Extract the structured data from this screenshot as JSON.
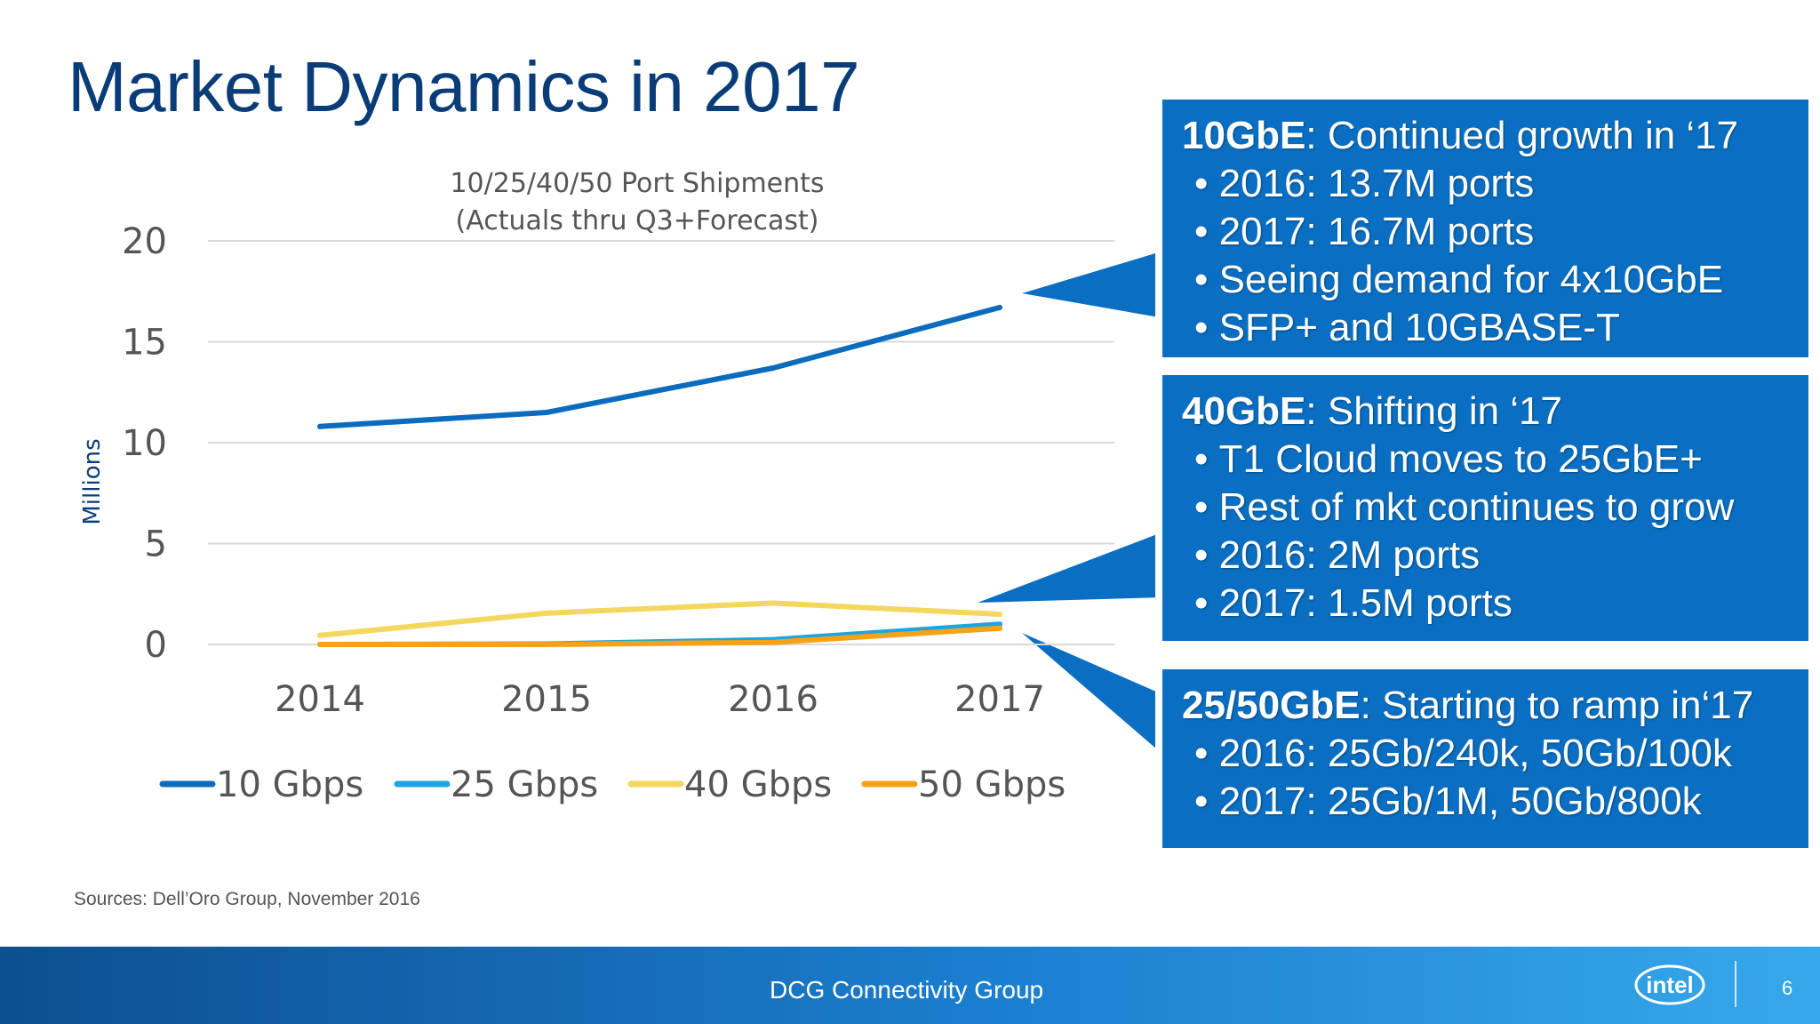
{
  "slide": {
    "title": "Market Dynamics in 2017",
    "sources": "Sources:  Dell’Oro Group, November 2016",
    "footer_text": "DCG Connectivity Group",
    "page_number": "6",
    "logo_text": "intel"
  },
  "chart_data": {
    "type": "line",
    "title": "10/25/40/50 Port Shipments",
    "subtitle": "(Actuals thru Q3+Forecast)",
    "ylabel": "Millions",
    "xlabel": "",
    "categories": [
      "2014",
      "2015",
      "2016",
      "2017"
    ],
    "ylim": [
      0,
      20
    ],
    "yticks": [
      "0",
      "5",
      "10",
      "15",
      "20"
    ],
    "grid": true,
    "legend_position": "bottom",
    "series": [
      {
        "name": "10 Gbps",
        "values": [
          10.8,
          11.5,
          13.7,
          16.7
        ],
        "color": "#0b6bbd"
      },
      {
        "name": "25 Gbps",
        "values": [
          0.0,
          0.02,
          0.24,
          1.0
        ],
        "color": "#1aa6e0"
      },
      {
        "name": "40 Gbps",
        "values": [
          0.45,
          1.55,
          2.05,
          1.5
        ],
        "color": "#f4d75e"
      },
      {
        "name": "50 Gbps",
        "values": [
          0.0,
          0.0,
          0.1,
          0.8
        ],
        "color": "#f5a21b"
      }
    ]
  },
  "callouts": [
    {
      "heading": "10GbE",
      "text": ": Continued growth in ‘17",
      "bullets": [
        "2016: 13.7M ports",
        "2017: 16.7M ports",
        "Seeing demand for 4x10GbE",
        "SFP+ and 10GBASE-T"
      ]
    },
    {
      "heading": "40GbE",
      "text": ": Shifting in ‘17",
      "bullets": [
        "T1 Cloud moves to 25GbE+",
        "Rest of mkt continues to grow",
        "2016: 2M ports",
        "2017: 1.5M ports"
      ]
    },
    {
      "heading": "25/50GbE",
      "text": ": Starting to ramp in‘17",
      "bullets": [
        "2016: 25Gb/240k, 50Gb/100k",
        "2017: 25Gb/1M, 50Gb/800k"
      ]
    }
  ],
  "colors": {
    "title": "#0a3d78",
    "callout_bg": "#0a6fc2",
    "footer_start": "#0d4f8f",
    "footer_end": "#37a8ea"
  }
}
